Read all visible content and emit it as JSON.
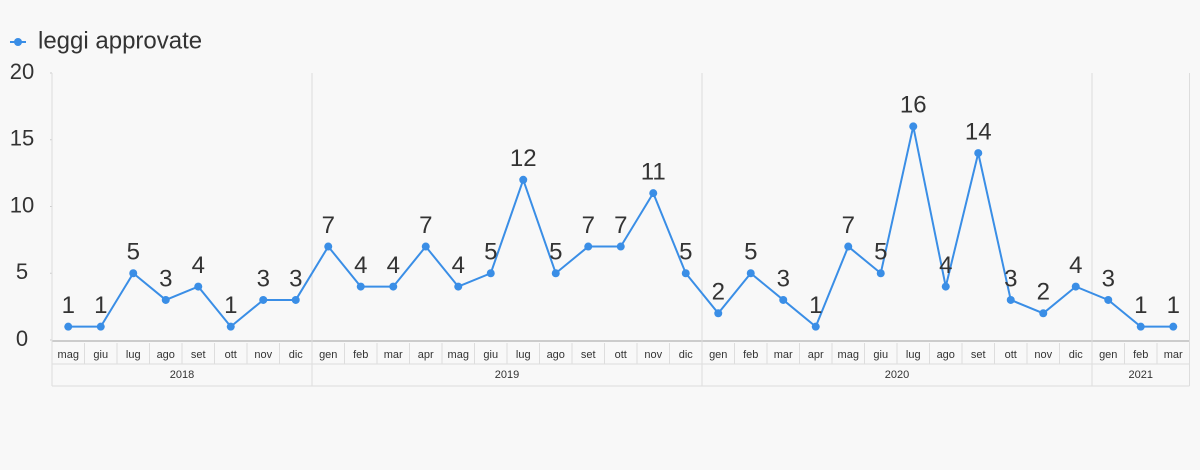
{
  "chart_data": {
    "type": "line",
    "groups": [
      {
        "label": "2018",
        "categories": [
          "mag",
          "giu",
          "lug",
          "ago",
          "set",
          "ott",
          "nov",
          "dic"
        ]
      },
      {
        "label": "2019",
        "categories": [
          "gen",
          "feb",
          "mar",
          "apr",
          "mag",
          "giu",
          "lug",
          "ago",
          "set",
          "ott",
          "nov",
          "dic"
        ]
      },
      {
        "label": "2020",
        "categories": [
          "gen",
          "feb",
          "mar",
          "apr",
          "mag",
          "giu",
          "lug",
          "ago",
          "set",
          "ott",
          "nov",
          "dic"
        ]
      },
      {
        "label": "2021",
        "categories": [
          "gen",
          "feb",
          "mar"
        ]
      }
    ],
    "series": [
      {
        "name": "leggi approvate",
        "color": "#3a8ee6",
        "values": [
          1,
          1,
          5,
          3,
          4,
          1,
          3,
          3,
          7,
          4,
          4,
          7,
          4,
          5,
          12,
          5,
          7,
          7,
          11,
          5,
          2,
          5,
          3,
          1,
          7,
          5,
          16,
          4,
          14,
          3,
          2,
          4,
          3,
          1,
          1
        ]
      }
    ],
    "ylim": [
      0,
      20
    ],
    "yticks": [
      0,
      5,
      10,
      15,
      20
    ]
  }
}
